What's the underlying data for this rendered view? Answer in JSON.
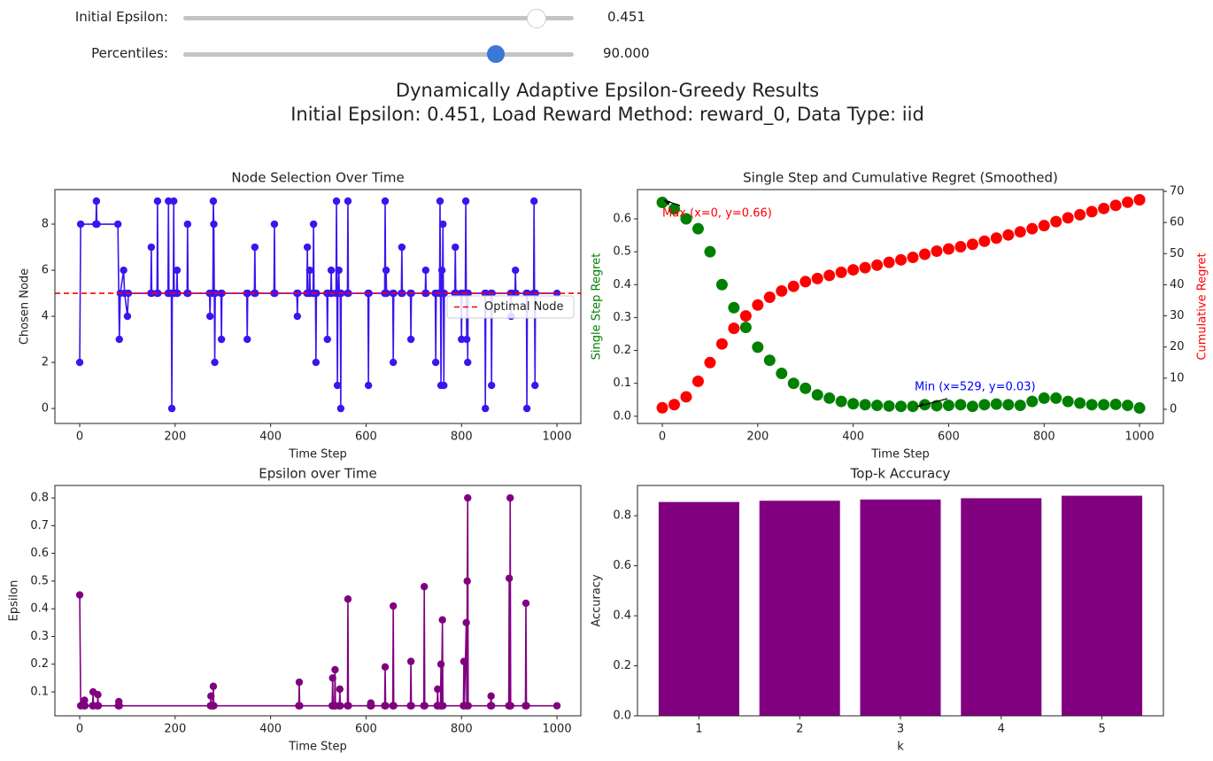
{
  "controls": [
    {
      "label": "Initial Epsilon:",
      "value": "0.451"
    },
    {
      "label": "Percentiles:",
      "value": "90.000"
    }
  ],
  "suptitle": [
    "Dynamically Adaptive Epsilon-Greedy Results",
    "Initial Epsilon: 0.451, Load Reward Method: reward_0, Data Type: iid"
  ],
  "chart_data": [
    {
      "type": "line",
      "title": "Node Selection Over Time",
      "x_label": "Time Step",
      "y_label": "Chosen Node",
      "xlim": [
        -52,
        1050
      ],
      "xticks": [
        0,
        200,
        400,
        600,
        800,
        1000
      ],
      "ylim": [
        -0.65,
        9.5
      ],
      "yticks": [
        0,
        2,
        4,
        6,
        8
      ],
      "x": [
        0,
        2,
        34,
        35,
        36,
        80,
        83,
        85,
        92,
        94,
        100,
        102,
        149,
        150,
        151,
        162,
        163,
        164,
        185,
        186,
        187,
        192,
        193,
        194,
        196,
        197,
        198,
        203,
        204,
        205,
        225,
        226,
        227,
        272,
        273,
        274,
        279,
        280,
        281,
        282,
        283,
        284,
        296,
        297,
        298,
        350,
        351,
        352,
        366,
        367,
        368,
        407,
        408,
        409,
        455,
        456,
        457,
        476,
        477,
        478,
        481,
        482,
        483,
        489,
        490,
        491,
        494,
        495,
        496,
        518,
        519,
        520,
        526,
        527,
        528,
        537,
        538,
        539,
        540,
        541,
        543,
        544,
        546,
        547,
        548,
        561,
        562,
        563,
        604,
        605,
        606,
        639,
        640,
        641,
        642,
        643,
        656,
        657,
        658,
        674,
        675,
        676,
        693,
        694,
        695,
        724,
        725,
        726,
        745,
        746,
        747,
        754,
        755,
        756,
        757,
        758,
        759,
        760,
        761,
        762,
        763,
        764,
        786,
        787,
        788,
        799,
        800,
        801,
        808,
        809,
        810,
        811,
        812,
        813,
        814,
        849,
        850,
        851,
        862,
        863,
        864,
        903,
        904,
        905,
        912,
        913,
        914,
        936,
        937,
        938,
        951,
        952,
        953,
        954,
        955,
        1000
      ],
      "series": [
        {
          "name": "Chosen Node",
          "color": "#3c14f0",
          "values": [
            2,
            8,
            8,
            9,
            8,
            8,
            3,
            5,
            6,
            5,
            4,
            5,
            5,
            7,
            5,
            5,
            9,
            5,
            5,
            9,
            5,
            5,
            0,
            5,
            5,
            9,
            5,
            5,
            6,
            5,
            5,
            8,
            5,
            5,
            4,
            5,
            5,
            9,
            8,
            5,
            2,
            5,
            5,
            3,
            5,
            5,
            3,
            5,
            5,
            7,
            5,
            5,
            8,
            5,
            5,
            4,
            5,
            5,
            7,
            5,
            5,
            6,
            5,
            5,
            8,
            5,
            5,
            2,
            5,
            5,
            3,
            5,
            5,
            6,
            5,
            5,
            9,
            5,
            1,
            5,
            6,
            5,
            5,
            0,
            5,
            5,
            9,
            5,
            5,
            1,
            5,
            5,
            9,
            5,
            6,
            5,
            5,
            2,
            5,
            5,
            7,
            5,
            5,
            3,
            5,
            5,
            6,
            5,
            5,
            2,
            5,
            5,
            9,
            5,
            1,
            5,
            6,
            5,
            8,
            5,
            1,
            5,
            5,
            7,
            5,
            5,
            3,
            5,
            5,
            9,
            5,
            3,
            5,
            2,
            5,
            5,
            0,
            5,
            5,
            1,
            5,
            5,
            4,
            5,
            5,
            6,
            5,
            5,
            0,
            5,
            5,
            9,
            5,
            1,
            5,
            5
          ]
        }
      ],
      "hline": {
        "name": "Optimal Node",
        "value": 5,
        "color": "#ff0000"
      },
      "legend": "center right"
    },
    {
      "type": "scatter",
      "title": "Single Step and Cumulative Regret (Smoothed)",
      "x_label": "Time Step",
      "y_label": "Single Step Regret",
      "y2_label": "Cumulative Regret",
      "xlim": [
        -52,
        1050
      ],
      "xticks": [
        0,
        200,
        400,
        600,
        800,
        1000
      ],
      "ylim": [
        -0.022,
        0.689
      ],
      "yticks": [
        {
          "value": 0,
          "label": "0.0"
        },
        0.1,
        0.2,
        0.3,
        0.4,
        0.5,
        0.6
      ],
      "y2lim": [
        -4.55,
        70.57
      ],
      "y2ticks": [
        0,
        10,
        20,
        30,
        40,
        50,
        60,
        70
      ],
      "x": [
        0,
        25,
        50,
        75,
        100,
        125,
        150,
        175,
        200,
        225,
        250,
        275,
        300,
        325,
        350,
        375,
        400,
        425,
        450,
        475,
        500,
        525,
        550,
        575,
        600,
        625,
        650,
        675,
        700,
        725,
        750,
        775,
        800,
        825,
        850,
        875,
        900,
        925,
        950,
        975,
        1000
      ],
      "series": [
        {
          "name": "Single Step Regret",
          "color": "#008000",
          "values": [
            0.65,
            0.63,
            0.6,
            0.57,
            0.5,
            0.4,
            0.33,
            0.27,
            0.21,
            0.17,
            0.13,
            0.1,
            0.085,
            0.065,
            0.055,
            0.045,
            0.038,
            0.035,
            0.033,
            0.031,
            0.03,
            0.03,
            0.035,
            0.032,
            0.033,
            0.035,
            0.03,
            0.035,
            0.037,
            0.035,
            0.033,
            0.045,
            0.055,
            0.055,
            0.045,
            0.04,
            0.035,
            0.035,
            0.036,
            0.033,
            0.025
          ]
        },
        {
          "name": "Cumulative Regret",
          "color": "#ff0000",
          "axis": "y2",
          "values": [
            0.5,
            1.5,
            4,
            9,
            15,
            21,
            26,
            30,
            33.5,
            36,
            38,
            39.5,
            41,
            42,
            43,
            44,
            44.8,
            45.5,
            46.3,
            47.2,
            48,
            48.8,
            49.8,
            50.8,
            51.5,
            52.2,
            53,
            54,
            55,
            56,
            57,
            58,
            59,
            60.3,
            61.5,
            62.5,
            63.5,
            64.5,
            65.5,
            66.5,
            67.3
          ]
        }
      ],
      "annotations": [
        {
          "text": "Max (x=0, y=0.66)",
          "color": "#ff0000"
        },
        {
          "text": "Min (x=529, y=0.03)",
          "color": "#0000ff"
        }
      ]
    },
    {
      "type": "line",
      "title": "Epsilon over Time",
      "x_label": "Time Step",
      "y_label": "Epsilon",
      "xlim": [
        -52,
        1050
      ],
      "xticks": [
        0,
        200,
        400,
        600,
        800,
        1000
      ],
      "ylim": [
        0.0137,
        0.845
      ],
      "yticks": [
        0.1,
        0.2,
        0.3,
        0.4,
        0.5,
        0.6,
        0.7,
        0.8
      ],
      "x": [
        0,
        2,
        9,
        10,
        11,
        27,
        28,
        29,
        37,
        38,
        39,
        81,
        82,
        83,
        274,
        275,
        276,
        279,
        280,
        281,
        459,
        460,
        461,
        529,
        530,
        531,
        534,
        535,
        536,
        544,
        545,
        546,
        561,
        562,
        563,
        609,
        610,
        611,
        639,
        640,
        641,
        656,
        657,
        658,
        693,
        694,
        695,
        721,
        722,
        723,
        749,
        750,
        751,
        756,
        757,
        758,
        760,
        761,
        804,
        805,
        806,
        810,
        811,
        812,
        813,
        814,
        861,
        862,
        863,
        899,
        900,
        901,
        902,
        903,
        934,
        935,
        936,
        1000
      ],
      "series": [
        {
          "name": "Epsilon",
          "color": "#800080",
          "values": [
            0.45,
            0.05,
            0.05,
            0.07,
            0.05,
            0.05,
            0.1,
            0.05,
            0.05,
            0.09,
            0.05,
            0.05,
            0.065,
            0.05,
            0.05,
            0.085,
            0.05,
            0.05,
            0.12,
            0.05,
            0.05,
            0.135,
            0.05,
            0.05,
            0.15,
            0.05,
            0.05,
            0.18,
            0.05,
            0.05,
            0.11,
            0.05,
            0.05,
            0.435,
            0.05,
            0.05,
            0.06,
            0.05,
            0.05,
            0.19,
            0.05,
            0.05,
            0.41,
            0.05,
            0.05,
            0.21,
            0.05,
            0.05,
            0.48,
            0.05,
            0.05,
            0.11,
            0.05,
            0.05,
            0.2,
            0.05,
            0.36,
            0.05,
            0.05,
            0.21,
            0.05,
            0.35,
            0.05,
            0.5,
            0.8,
            0.05,
            0.05,
            0.085,
            0.05,
            0.05,
            0.51,
            0.05,
            0.8,
            0.05,
            0.05,
            0.42,
            0.05,
            0.05
          ]
        }
      ]
    },
    {
      "type": "bar",
      "title": "Top-k Accuracy",
      "x_label": "k",
      "y_label": "Accuracy",
      "categories": [
        "1",
        "2",
        "3",
        "4",
        "5"
      ],
      "values": [
        0.855,
        0.86,
        0.865,
        0.87,
        0.88
      ],
      "color": "#800080",
      "ylim": [
        0,
        0.921
      ],
      "yticks": [
        {
          "value": 0,
          "label": "0.0"
        },
        0.2,
        0.4,
        0.6,
        0.8
      ]
    }
  ]
}
